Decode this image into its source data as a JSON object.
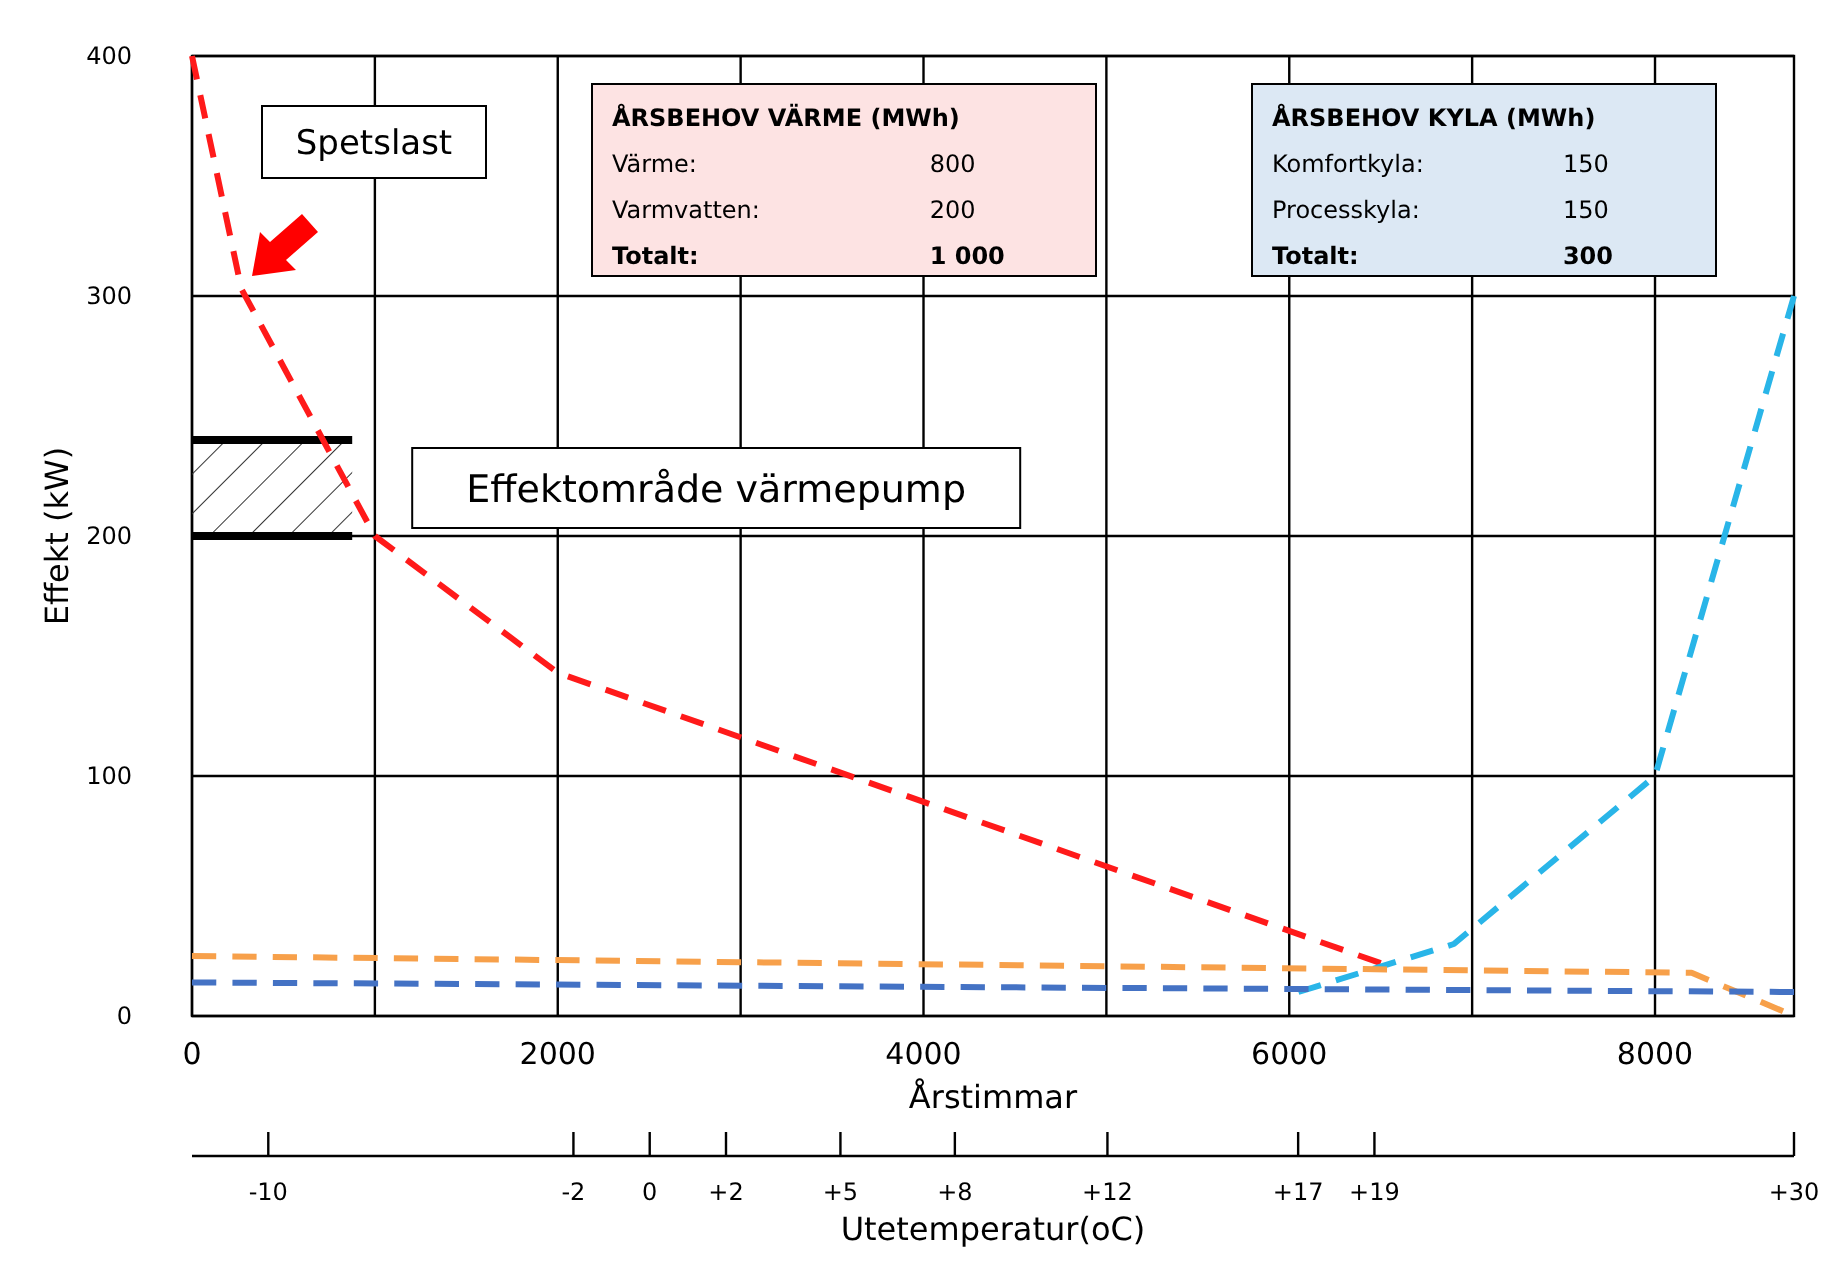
{
  "chart_data": {
    "type": "line",
    "xlabel": "Årstimmar",
    "ylabel": "Effekt (kW)",
    "x2label": "Utetemperatur(oC)",
    "xlim": [
      0,
      8760
    ],
    "xticks": [
      0,
      {
        "value": 1000,
        "label": null
      },
      2000,
      {
        "value": 3000,
        "label": null
      },
      4000,
      {
        "value": 5000,
        "label": null
      },
      6000,
      {
        "value": 7000,
        "label": null
      },
      8000
    ],
    "x2lim": [
      -12,
      30
    ],
    "x2ticks": [
      -10,
      -2,
      0,
      {
        "value": 2,
        "label": "+2"
      },
      {
        "value": 5,
        "label": "+5"
      },
      {
        "value": 8,
        "label": "+8"
      },
      {
        "value": 12,
        "label": "+12"
      },
      {
        "value": 17,
        "label": "+17"
      },
      {
        "value": 19,
        "label": "+19"
      },
      {
        "value": 30,
        "label": "+30"
      }
    ],
    "ylim": [
      0,
      400
    ],
    "yticks": [
      0,
      100,
      200,
      300,
      400
    ],
    "grid": true,
    "marker": "none",
    "line_style": "dashed",
    "series": [
      {
        "color": "#ff1a1a",
        "x": [
          0,
          270,
          1000,
          2000,
          6500
        ],
        "values": [
          400,
          303,
          200,
          143,
          22
        ]
      },
      {
        "color": "#29b5e8",
        "x": [
          6050,
          6900,
          8000,
          8760
        ],
        "values": [
          10,
          30,
          100,
          300
        ]
      },
      {
        "color": "#f7a04a",
        "x": [
          0,
          8200,
          8700
        ],
        "values": [
          25,
          18,
          2
        ]
      },
      {
        "color": "#4472c4",
        "x": [
          0,
          8760
        ],
        "values": [
          14,
          10
        ]
      }
    ],
    "bands": [
      {
        "axis": "y",
        "from": 200,
        "to": 240,
        "label": "Effektområde värmepump"
      }
    ],
    "annotations": [
      "Spetslast",
      "ÅRSBEHOV VÄRME (MWh)",
      "Värme:",
      "800",
      "Varmvatten:",
      "200",
      "Totalt:",
      "1 000",
      "ÅRSBEHOV KYLA (MWh)",
      "Komfortkyla:",
      "150",
      "Processkyla:",
      "150",
      "Totalt:",
      "300"
    ]
  }
}
